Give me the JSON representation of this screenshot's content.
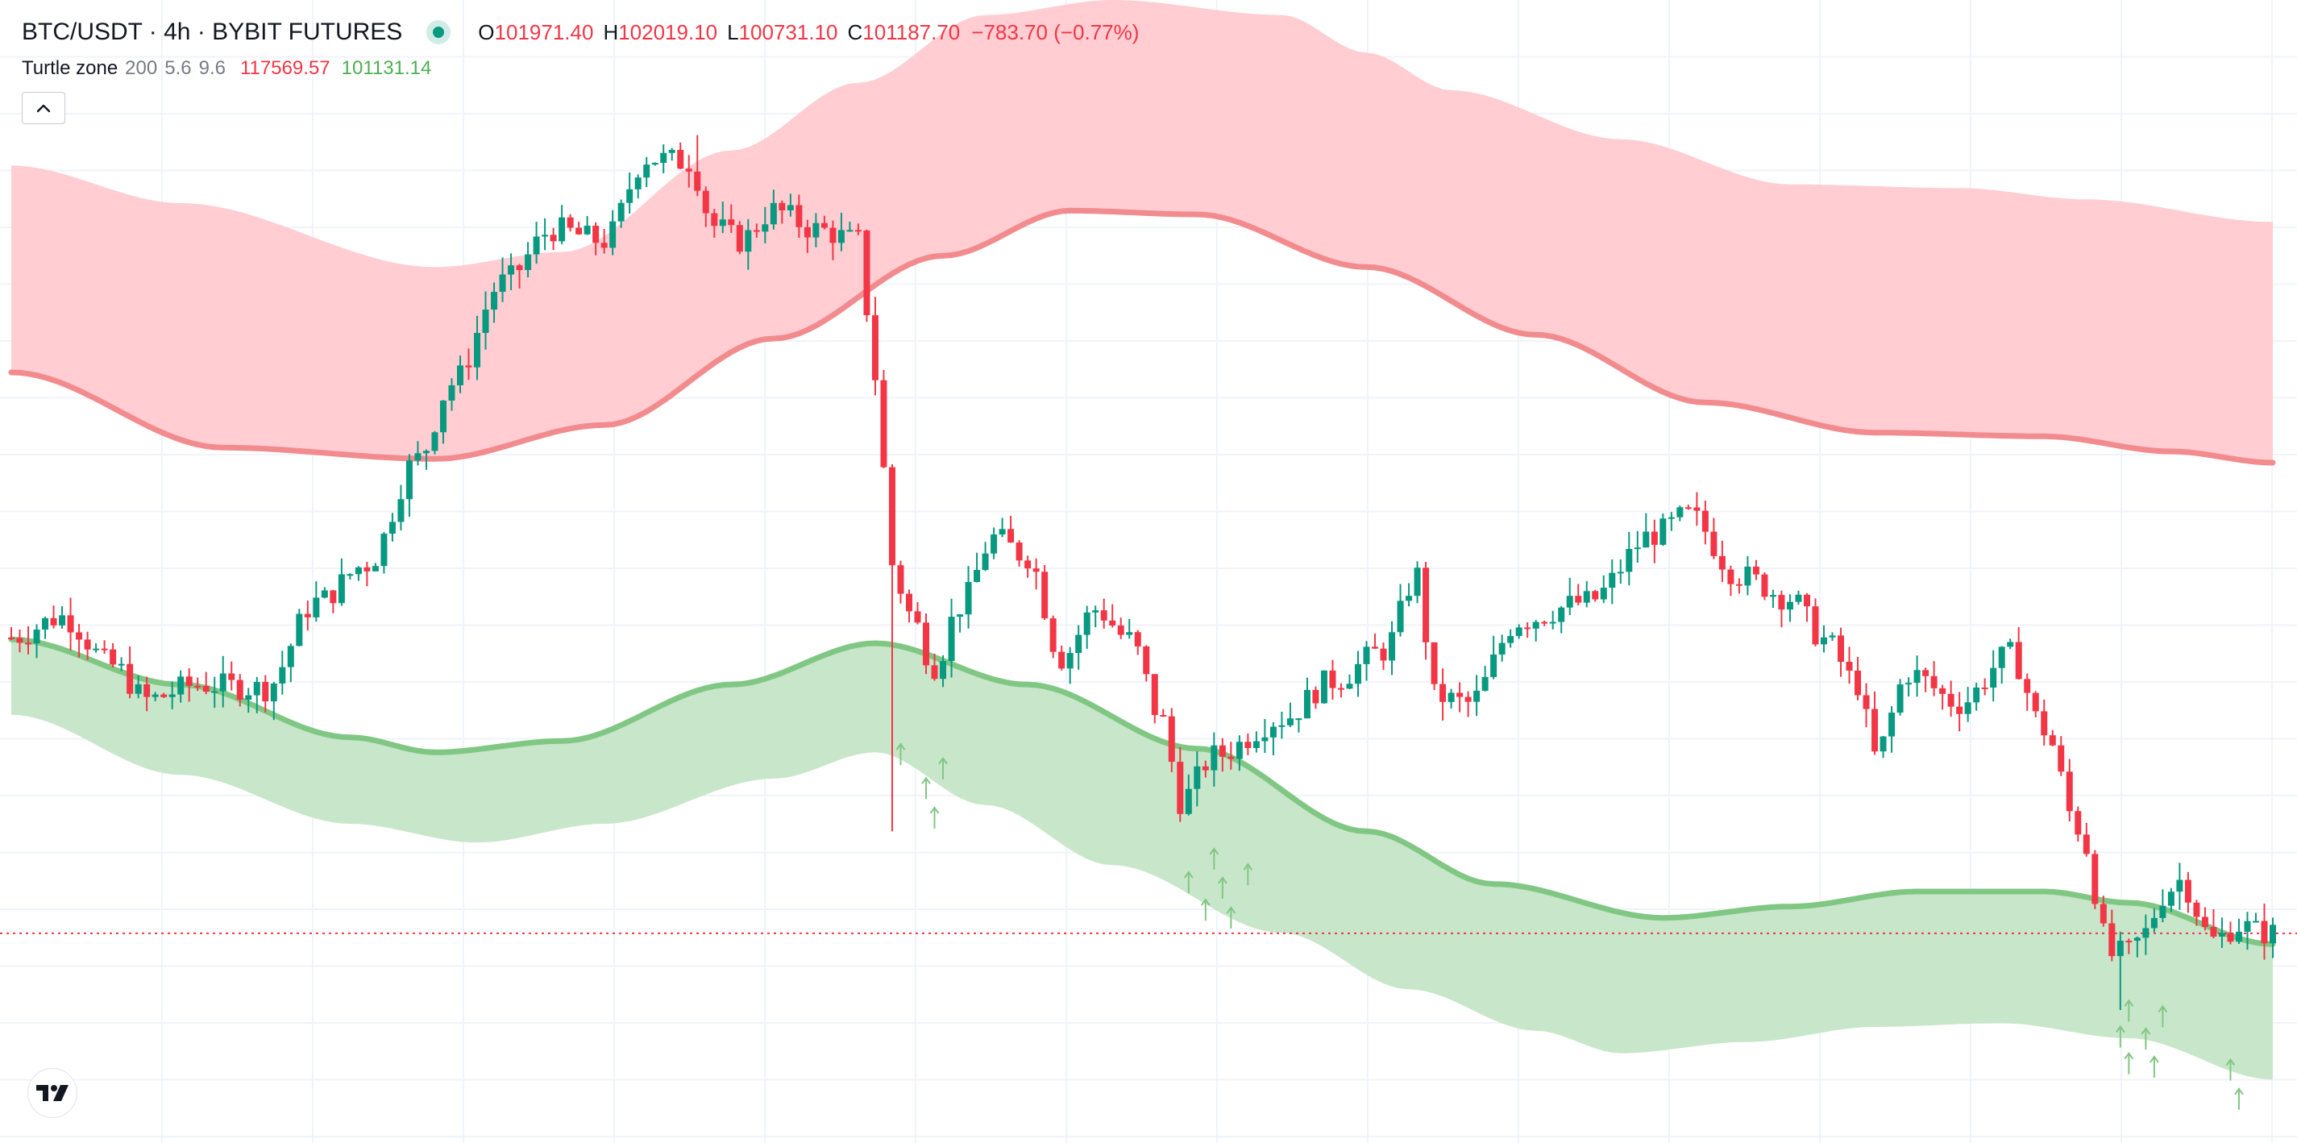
{
  "header": {
    "symbol_title": "BTC/USDT · 4h · BYBIT FUTURES",
    "ohlc": {
      "o_label": "O",
      "o_value": "101971.40",
      "h_label": "H",
      "h_value": "102019.10",
      "l_label": "L",
      "l_value": "100731.10",
      "c_label": "C",
      "c_value": "101187.70",
      "change": "−783.70 (−0.77%)"
    }
  },
  "indicator": {
    "name": "Turtle zone",
    "param1": "200",
    "param2": "5.6",
    "param3": "9.6",
    "upper_value": "117569.57",
    "lower_value": "101131.14"
  },
  "icons": {
    "status": "live-status-dot-icon",
    "collapse": "chevron-up-icon",
    "logo": "tradingview-logo-icon"
  },
  "colors": {
    "up": "#089981",
    "down": "#f23645",
    "upper_band_fill": "#ffcdd2",
    "upper_band_line": "#f28b8e",
    "lower_band_fill": "#c8e6c9",
    "lower_band_line": "#81c784",
    "signal_arrow": "#81c784",
    "grid": "#f0f3fa",
    "price_line": "#f23645"
  },
  "chart_data": {
    "type": "candlestick",
    "symbol": "BTC/USDT",
    "interval": "4h",
    "exchange": "BYBIT FUTURES",
    "ylim": [
      96000,
      126000
    ],
    "last_close": 101187.7,
    "x_count": 268,
    "candle_anchors": [
      [
        0,
        109050
      ],
      [
        6,
        109600
      ],
      [
        12,
        108300
      ],
      [
        16,
        107400
      ],
      [
        22,
        107800
      ],
      [
        30,
        107700
      ],
      [
        36,
        110000
      ],
      [
        42,
        111000
      ],
      [
        48,
        113800
      ],
      [
        52,
        115800
      ],
      [
        58,
        118500
      ],
      [
        64,
        119900
      ],
      [
        70,
        119600
      ],
      [
        75,
        121800
      ],
      [
        80,
        121700
      ],
      [
        83,
        120000
      ],
      [
        86,
        119600
      ],
      [
        90,
        120400
      ],
      [
        95,
        119900
      ],
      [
        100,
        119600
      ],
      [
        102,
        116000
      ],
      [
        104,
        111000
      ],
      [
        106,
        109700
      ],
      [
        109,
        108300
      ],
      [
        112,
        109900
      ],
      [
        116,
        111700
      ],
      [
        120,
        111200
      ],
      [
        124,
        108500
      ],
      [
        128,
        109800
      ],
      [
        132,
        109000
      ],
      [
        136,
        106800
      ],
      [
        138,
        104700
      ],
      [
        142,
        105900
      ],
      [
        150,
        106900
      ],
      [
        156,
        107900
      ],
      [
        162,
        108700
      ],
      [
        166,
        110700
      ],
      [
        168,
        107500
      ],
      [
        172,
        107300
      ],
      [
        178,
        109500
      ],
      [
        186,
        110000
      ],
      [
        194,
        111800
      ],
      [
        198,
        112300
      ],
      [
        204,
        110700
      ],
      [
        210,
        110100
      ],
      [
        214,
        109000
      ],
      [
        218,
        107800
      ],
      [
        220,
        105900
      ],
      [
        224,
        108100
      ],
      [
        230,
        107300
      ],
      [
        236,
        108600
      ],
      [
        240,
        106600
      ],
      [
        244,
        104000
      ],
      [
        248,
        100600
      ],
      [
        250,
        100700
      ],
      [
        252,
        101200
      ],
      [
        254,
        102200
      ],
      [
        256,
        102600
      ],
      [
        260,
        101000
      ],
      [
        263,
        101400
      ],
      [
        266,
        101200
      ],
      [
        267,
        101188
      ]
    ],
    "series": [
      {
        "type": "line",
        "points": [
          [
            0,
            116100
          ],
          [
            25,
            114100
          ],
          [
            50,
            113800
          ],
          [
            70,
            114700
          ],
          [
            90,
            117000
          ],
          [
            110,
            119200
          ],
          [
            125,
            120400
          ],
          [
            140,
            120300
          ],
          [
            160,
            118900
          ],
          [
            180,
            117100
          ],
          [
            200,
            115300
          ],
          [
            220,
            114500
          ],
          [
            240,
            114400
          ],
          [
            255,
            114000
          ],
          [
            267,
            113700
          ]
        ]
      },
      {
        "type": "area",
        "points": [
          [
            0,
            121600
          ],
          [
            20,
            120600
          ],
          [
            50,
            118900
          ],
          [
            65,
            119300
          ],
          [
            85,
            122000
          ],
          [
            100,
            123800
          ],
          [
            115,
            125600
          ],
          [
            130,
            126000
          ],
          [
            150,
            125600
          ],
          [
            160,
            124600
          ],
          [
            170,
            123600
          ],
          [
            190,
            122300
          ],
          [
            210,
            121100
          ],
          [
            230,
            121000
          ],
          [
            245,
            120700
          ],
          [
            267,
            120100
          ]
        ]
      },
      {
        "type": "line",
        "points": [
          [
            0,
            109000
          ],
          [
            20,
            107800
          ],
          [
            40,
            106400
          ],
          [
            50,
            106000
          ],
          [
            65,
            106300
          ],
          [
            85,
            107800
          ],
          [
            102,
            108900
          ],
          [
            120,
            107800
          ],
          [
            140,
            106100
          ],
          [
            160,
            103900
          ],
          [
            175,
            102500
          ],
          [
            195,
            101600
          ],
          [
            210,
            101900
          ],
          [
            225,
            102300
          ],
          [
            240,
            102300
          ],
          [
            250,
            102000
          ],
          [
            267,
            100900
          ]
        ]
      },
      {
        "type": "area",
        "points": [
          [
            0,
            107000
          ],
          [
            20,
            105400
          ],
          [
            40,
            104100
          ],
          [
            55,
            103600
          ],
          [
            70,
            104100
          ],
          [
            90,
            105300
          ],
          [
            102,
            106000
          ],
          [
            115,
            104600
          ],
          [
            130,
            103000
          ],
          [
            150,
            101200
          ],
          [
            165,
            99700
          ],
          [
            180,
            98600
          ],
          [
            190,
            98000
          ],
          [
            205,
            98300
          ],
          [
            220,
            98700
          ],
          [
            235,
            98800
          ],
          [
            250,
            98400
          ],
          [
            267,
            97300
          ]
        ]
      }
    ],
    "markers": {
      "type": "up-arrow",
      "x": [
        105,
        108,
        109,
        110,
        139,
        141,
        142,
        143,
        144,
        146,
        249,
        250,
        250,
        252,
        253,
        254,
        262,
        263
      ]
    }
  }
}
